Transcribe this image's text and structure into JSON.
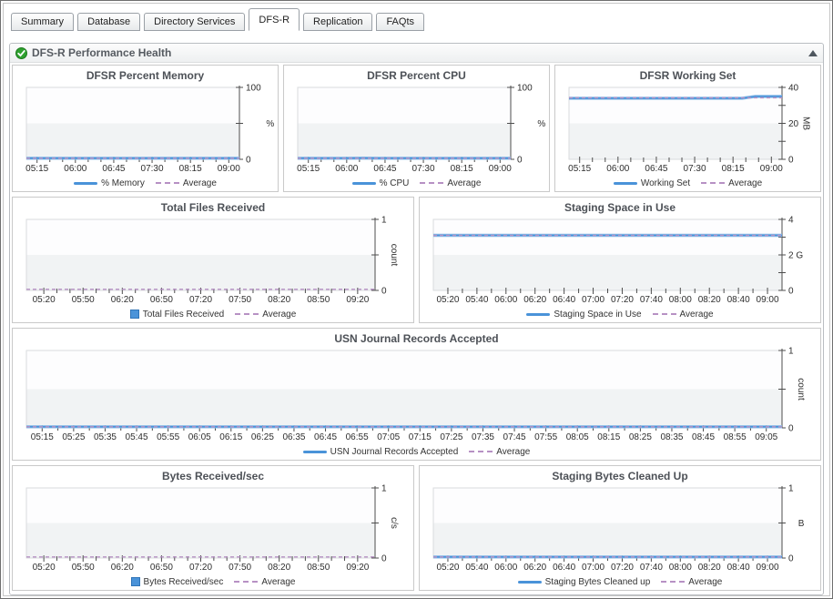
{
  "tabs": {
    "items": [
      {
        "label": "Summary",
        "active": false
      },
      {
        "label": "Database",
        "active": false
      },
      {
        "label": "Directory Services",
        "active": false
      },
      {
        "label": "DFS-R",
        "active": true
      },
      {
        "label": "Replication",
        "active": false
      },
      {
        "label": "FAQts",
        "active": false
      }
    ]
  },
  "panel": {
    "title": "DFS-R Performance Health",
    "status_icon": "green-check",
    "collapse_icon": "up-triangle"
  },
  "colors": {
    "series": "#4a93d9",
    "series_halo": "#8abbe8",
    "average": "#b791c4",
    "axis": "#4d4d4d",
    "plot_border": "#d9dbde",
    "plot_band": "#f1f3f4",
    "plot_top": "#fdfdfe"
  },
  "charts": [
    {
      "title": "DFSR Percent Memory",
      "type": "line",
      "unit": "%",
      "unit_rotated": false,
      "ymax": 100,
      "yticks": [
        {
          "v": 0,
          "label": "0"
        },
        {
          "v": 50,
          "label": ""
        },
        {
          "v": 100,
          "label": "100"
        }
      ],
      "xlabels": [
        "05:15",
        "06:00",
        "06:45",
        "07:30",
        "08:15",
        "09:00"
      ],
      "xminor": 2,
      "values": [
        1.3,
        1.3,
        1.3,
        1.3,
        1.3,
        1.3,
        1.3,
        1.3,
        1.3,
        1.3
      ],
      "average": 1.3,
      "legend": [
        {
          "label": "% Memory",
          "swatch": "line"
        },
        {
          "label": "Average",
          "swatch": "dash"
        }
      ]
    },
    {
      "title": "DFSR Percent CPU",
      "type": "line",
      "unit": "%",
      "unit_rotated": false,
      "ymax": 100,
      "yticks": [
        {
          "v": 0,
          "label": "0"
        },
        {
          "v": 50,
          "label": ""
        },
        {
          "v": 100,
          "label": "100"
        }
      ],
      "xlabels": [
        "05:15",
        "06:00",
        "06:45",
        "07:30",
        "08:15",
        "09:00"
      ],
      "xminor": 2,
      "values": [
        1.5,
        1.1,
        1.4,
        1.2,
        1.6,
        1.3,
        1.4,
        1.1,
        1.5,
        1.3,
        1.2,
        1.5,
        1.2,
        1.4
      ],
      "average": 1.3,
      "legend": [
        {
          "label": "% CPU",
          "swatch": "line"
        },
        {
          "label": "Average",
          "swatch": "dash"
        }
      ]
    },
    {
      "title": "DFSR Working Set",
      "type": "line",
      "unit": "MB",
      "unit_rotated": true,
      "ymax": 40,
      "yticks": [
        {
          "v": 0,
          "label": "0"
        },
        {
          "v": 10,
          "label": ""
        },
        {
          "v": 20,
          "label": "20"
        },
        {
          "v": 30,
          "label": ""
        },
        {
          "v": 40,
          "label": "40"
        }
      ],
      "xlabels": [
        "05:15",
        "06:00",
        "06:45",
        "07:30",
        "08:15",
        "09:00"
      ],
      "xminor": 2,
      "values": [
        34,
        34,
        34,
        34,
        34,
        34,
        34,
        34,
        34,
        34,
        34,
        34,
        34,
        34,
        35,
        35,
        35
      ],
      "average": 34.2,
      "legend": [
        {
          "label": "Working Set",
          "swatch": "line"
        },
        {
          "label": "Average",
          "swatch": "dash"
        }
      ]
    },
    {
      "title": "Total Files Received",
      "type": "bar",
      "unit": "count",
      "unit_rotated": true,
      "ymax": 1,
      "yticks": [
        {
          "v": 0,
          "label": "0"
        },
        {
          "v": 0.5,
          "label": ""
        },
        {
          "v": 1,
          "label": "1"
        }
      ],
      "xlabels": [
        "05:20",
        "05:50",
        "06:20",
        "06:50",
        "07:20",
        "07:50",
        "08:20",
        "08:50",
        "09:20"
      ],
      "xminor": 2,
      "values": [
        0,
        0,
        0,
        0,
        0,
        0,
        0,
        0,
        0
      ],
      "average": 0,
      "legend": [
        {
          "label": "Total Files Received",
          "swatch": "bar"
        },
        {
          "label": "Average",
          "swatch": "dash"
        }
      ]
    },
    {
      "title": "Staging Space in Use",
      "type": "line",
      "unit": "",
      "unit_rotated": false,
      "ymax": 4,
      "yticks": [
        {
          "v": 0,
          "label": "0"
        },
        {
          "v": 1,
          "label": ""
        },
        {
          "v": 2,
          "label": "2 G"
        },
        {
          "v": 3,
          "label": ""
        },
        {
          "v": 4,
          "label": "4"
        }
      ],
      "xlabels": [
        "05:20",
        "05:40",
        "06:00",
        "06:20",
        "06:40",
        "07:00",
        "07:20",
        "07:40",
        "08:00",
        "08:20",
        "08:40",
        "09:00"
      ],
      "xminor": 1,
      "values": [
        3.1,
        3.1,
        3.1,
        3.1,
        3.1,
        3.1,
        3.1,
        3.1,
        3.1,
        3.1,
        3.1,
        3.1
      ],
      "average": 3.1,
      "legend": [
        {
          "label": "Staging Space in Use",
          "swatch": "line"
        },
        {
          "label": "Average",
          "swatch": "dash"
        }
      ]
    },
    {
      "title": "USN Journal Records Accepted",
      "type": "line",
      "unit": "count",
      "unit_rotated": true,
      "ymax": 1,
      "yticks": [
        {
          "v": 0,
          "label": "0"
        },
        {
          "v": 0.5,
          "label": ""
        },
        {
          "v": 1,
          "label": "1"
        }
      ],
      "xlabels": [
        "05:15",
        "05:25",
        "05:35",
        "05:45",
        "05:55",
        "06:05",
        "06:15",
        "06:25",
        "06:35",
        "06:45",
        "06:55",
        "07:05",
        "07:15",
        "07:25",
        "07:35",
        "07:45",
        "07:55",
        "08:05",
        "08:15",
        "08:25",
        "08:35",
        "08:45",
        "08:55",
        "09:05"
      ],
      "xminor": 1,
      "values": [
        0,
        0,
        0,
        0,
        0,
        0,
        0,
        0,
        0,
        0,
        0,
        0
      ],
      "average": 0,
      "legend": [
        {
          "label": "USN Journal Records Accepted",
          "swatch": "line"
        },
        {
          "label": "Average",
          "swatch": "dash"
        }
      ]
    },
    {
      "title": "Bytes Received/sec",
      "type": "bar",
      "unit": "c/s",
      "unit_rotated": true,
      "ymax": 1,
      "yticks": [
        {
          "v": 0,
          "label": "0"
        },
        {
          "v": 0.5,
          "label": ""
        },
        {
          "v": 1,
          "label": "1"
        }
      ],
      "xlabels": [
        "05:20",
        "05:50",
        "06:20",
        "06:50",
        "07:20",
        "07:50",
        "08:20",
        "08:50",
        "09:20"
      ],
      "xminor": 2,
      "values": [
        0,
        0,
        0,
        0,
        0,
        0,
        0,
        0,
        0
      ],
      "average": 0,
      "legend": [
        {
          "label": "Bytes Received/sec",
          "swatch": "bar"
        },
        {
          "label": "Average",
          "swatch": "dash"
        }
      ]
    },
    {
      "title": "Staging Bytes Cleaned Up",
      "type": "line",
      "unit": "B",
      "unit_rotated": false,
      "ymax": 1,
      "yticks": [
        {
          "v": 0,
          "label": "0"
        },
        {
          "v": 0.5,
          "label": ""
        },
        {
          "v": 1,
          "label": "1"
        }
      ],
      "xlabels": [
        "05:20",
        "05:40",
        "06:00",
        "06:20",
        "06:40",
        "07:00",
        "07:20",
        "07:40",
        "08:00",
        "08:20",
        "08:40",
        "09:00"
      ],
      "xminor": 1,
      "values": [
        0,
        0,
        0,
        0,
        0,
        0,
        0,
        0,
        0,
        0,
        0,
        0
      ],
      "average": 0,
      "legend": [
        {
          "label": "Staging Bytes Cleaned up",
          "swatch": "line"
        },
        {
          "label": "Average",
          "swatch": "dash"
        }
      ]
    }
  ]
}
